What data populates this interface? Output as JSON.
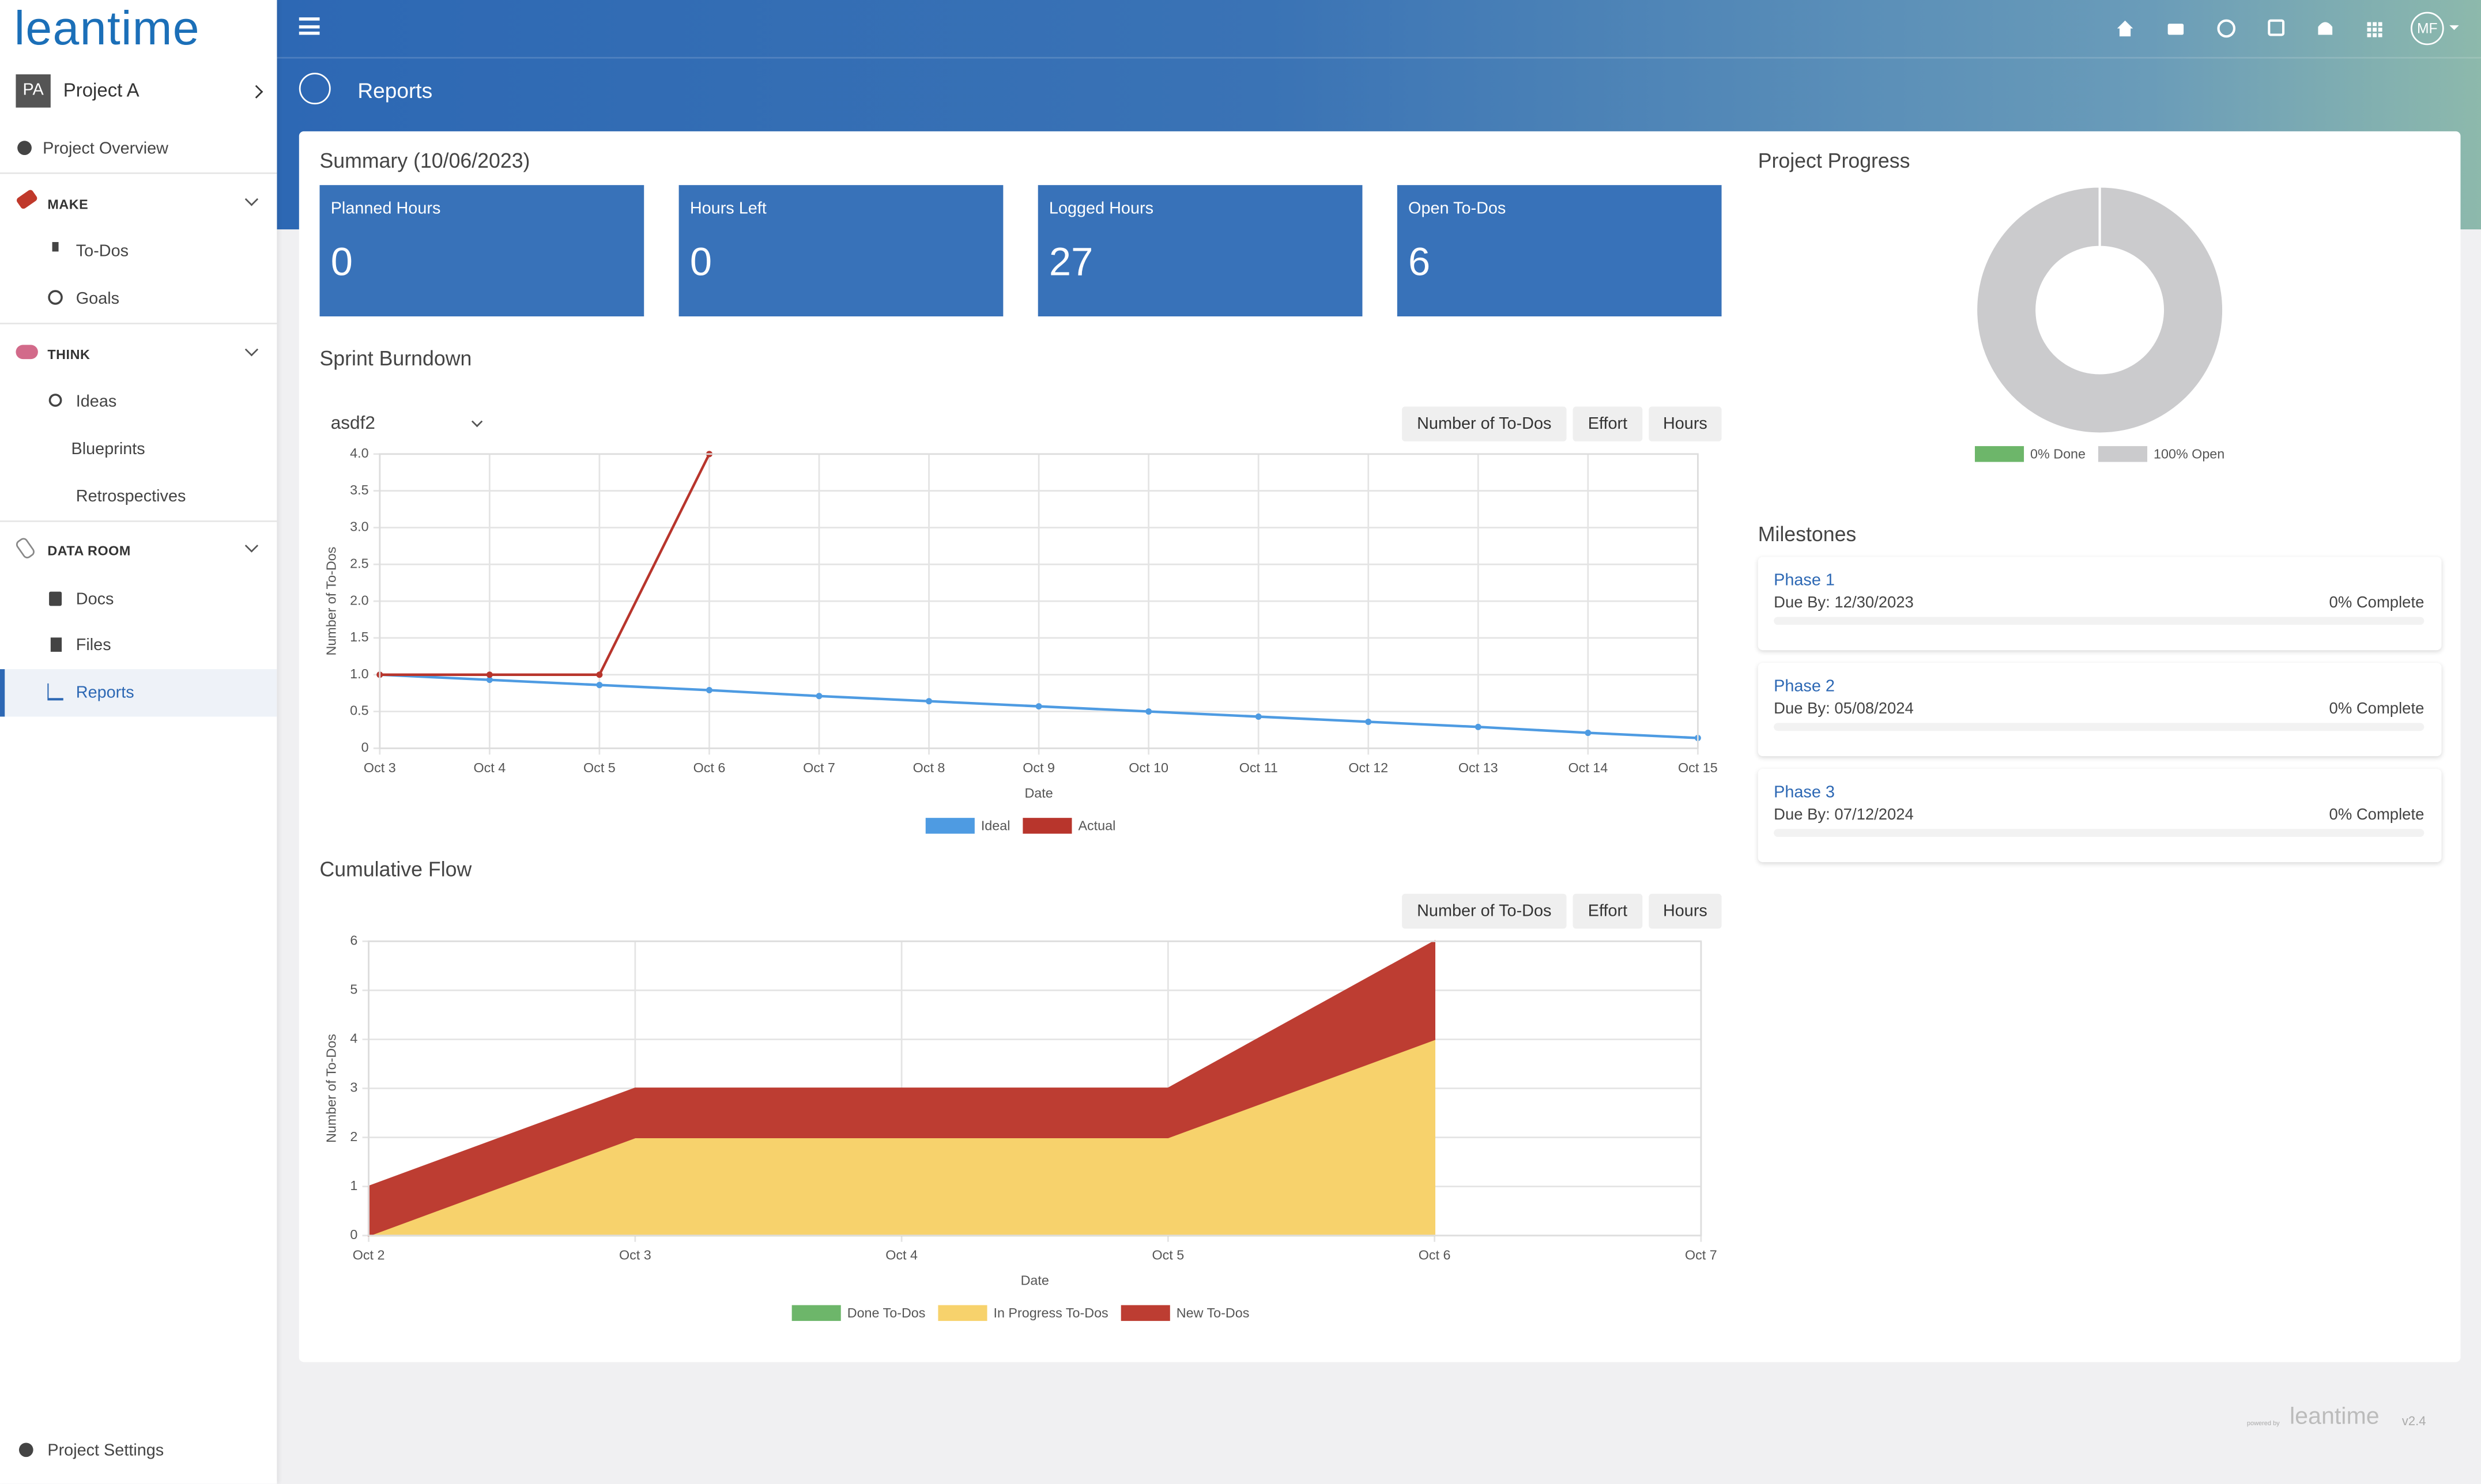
{
  "sidebar": {
    "logo": "leantime",
    "project_initials": "PA",
    "project_name": "Project A",
    "items": [
      "Project Overview"
    ],
    "sections": [
      {
        "title": "MAKE",
        "items": [
          "To-Dos",
          "Goals"
        ]
      },
      {
        "title": "THINK",
        "items": [
          "Ideas",
          "Blueprints",
          "Retrospectives"
        ]
      },
      {
        "title": "DATA ROOM",
        "items": [
          "Docs",
          "Files",
          "Reports"
        ]
      }
    ],
    "footer": "Project Settings"
  },
  "header": {
    "avatar": "MF",
    "page_title": "Reports"
  },
  "summary": {
    "title": "Summary (10/06/2023)",
    "cards": [
      {
        "label": "Planned Hours",
        "value": 0
      },
      {
        "label": "Hours Left",
        "value": 0
      },
      {
        "label": "Logged Hours",
        "value": 27
      },
      {
        "label": "Open To-Dos",
        "value": 6
      }
    ]
  },
  "burndown_controls": {
    "sprint": "asdf2",
    "buttons": [
      "Number of To-Dos",
      "Effort",
      "Hours"
    ]
  },
  "flow_controls": {
    "buttons": [
      "Number of To-Dos",
      "Effort",
      "Hours"
    ]
  },
  "milestones": {
    "title": "Milestones",
    "items": [
      {
        "name": "Phase 1",
        "due": "Due By: 12/30/2023",
        "complete": "0% Complete"
      },
      {
        "name": "Phase 2",
        "due": "Due By: 05/08/2024",
        "complete": "0% Complete"
      },
      {
        "name": "Phase 3",
        "due": "Due By: 07/12/2024",
        "complete": "0% Complete"
      }
    ]
  },
  "footer": {
    "powered": "powered by",
    "brand": "leantime",
    "version": "v2.4"
  },
  "chart_data": [
    {
      "type": "line",
      "title": "Sprint Burndown",
      "x_label": "Date",
      "y_label": "Number of To-Dos",
      "categories": [
        "Oct 3",
        "Oct 4",
        "Oct 5",
        "Oct 6",
        "Oct 7",
        "Oct 8",
        "Oct 9",
        "Oct 10",
        "Oct 11",
        "Oct 12",
        "Oct 13",
        "Oct 14",
        "Oct 15"
      ],
      "series": [
        {
          "name": "Ideal",
          "color": "#4e9be2",
          "values": [
            1,
            0.93,
            0.86,
            0.79,
            0.71,
            0.64,
            0.57,
            0.5,
            0.43,
            0.36,
            0.29,
            0.21,
            0.14
          ]
        },
        {
          "name": "Actual",
          "color": "#b8352c",
          "values": [
            1,
            1,
            1,
            4,
            null,
            null,
            null,
            null,
            null,
            null,
            null,
            null,
            null
          ]
        }
      ],
      "ylim": [
        0,
        4
      ],
      "yticks": [
        0,
        0.5,
        {
          "value": 1,
          "label": "1.0"
        },
        1.5,
        {
          "value": 2,
          "label": "2.0"
        },
        2.5,
        {
          "value": 3,
          "label": "3.0"
        },
        3.5,
        {
          "value": 4,
          "label": "4.0"
        }
      ],
      "grid": true,
      "legend": "bottom"
    },
    {
      "type": "area",
      "title": "Cumulative Flow",
      "x_label": "Date",
      "y_label": "Number of To-Dos",
      "stacked": true,
      "categories": [
        "Oct 2",
        "Oct 3",
        "Oct 4",
        "Oct 5",
        "Oct 6",
        "Oct 7"
      ],
      "series": [
        {
          "name": "Done To-Dos",
          "color": "#6db66a",
          "values": [
            0,
            0,
            0,
            0,
            0,
            null
          ]
        },
        {
          "name": "In Progress To-Dos",
          "color": "#f7d26c",
          "values": [
            0,
            2,
            2,
            2,
            4,
            null
          ]
        },
        {
          "name": "New To-Dos",
          "color": "#bd3d32",
          "values": [
            1,
            1,
            1,
            1,
            2,
            null
          ]
        }
      ],
      "ylim": [
        0,
        6
      ],
      "yticks": [
        0,
        1,
        2,
        3,
        4,
        5,
        6
      ],
      "grid": true,
      "legend": "bottom"
    },
    {
      "type": "pie",
      "title": "Project Progress",
      "donut": true,
      "categories": [
        "Done",
        "Open"
      ],
      "values": [
        0,
        100
      ],
      "value_labels": [
        "0% Done",
        "100% Open"
      ],
      "colors": [
        "#6db66a",
        "#cbcbcd"
      ],
      "legend": "bottom"
    }
  ]
}
